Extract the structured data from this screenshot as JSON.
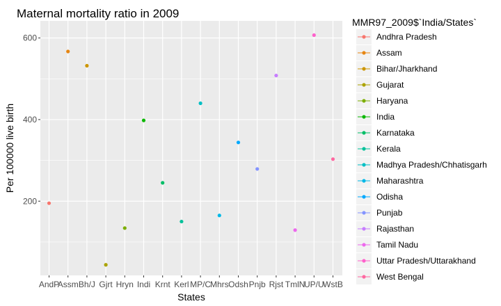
{
  "chart_data": {
    "type": "scatter",
    "title": "Maternal mortality ratio in 2009",
    "xlabel": "States",
    "ylabel": "Per 100000 live birth",
    "ylim": [
      18,
      642
    ],
    "yticks": [
      200,
      400,
      600
    ],
    "grid": true,
    "legend": {
      "title": "MMR97_2009$`India/States`",
      "placement": "right"
    },
    "categories": [
      "AndP",
      "Assm",
      "Bh/J",
      "Gjrt",
      "Hryn",
      "Indi",
      "Krnt",
      "Kerl",
      "MP/C",
      "Mhrs",
      "Odsh",
      "Pnjb",
      "Rjst",
      "TmlN",
      "UP/U",
      "WstB"
    ],
    "series": [
      {
        "name": "Andhra Pradesh",
        "x": "AndP",
        "y": 195,
        "color": "#F8766D"
      },
      {
        "name": "Assam",
        "x": "Assm",
        "y": 567,
        "color": "#E68613"
      },
      {
        "name": "Bihar/Jharkhand",
        "x": "Bh/J",
        "y": 532,
        "color": "#CD9600"
      },
      {
        "name": "Gujarat",
        "x": "Gjrt",
        "y": 44,
        "color": "#ABA300"
      },
      {
        "name": "Haryana",
        "x": "Hryn",
        "y": 134,
        "color": "#7CAE00"
      },
      {
        "name": "India",
        "x": "Indi",
        "y": 398,
        "color": "#0CB702"
      },
      {
        "name": "Karnataka",
        "x": "Krnt",
        "y": 245,
        "color": "#00BE67"
      },
      {
        "name": "Kerala",
        "x": "Kerl",
        "y": 150,
        "color": "#00C19A"
      },
      {
        "name": "Madhya Pradesh/Chhatisgarh",
        "x": "MP/C",
        "y": 440,
        "color": "#00BFC4"
      },
      {
        "name": "Maharashtra",
        "x": "Mhrs",
        "y": 165,
        "color": "#00B8E7"
      },
      {
        "name": "Odisha",
        "x": "Odsh",
        "y": 344,
        "color": "#00A9FF"
      },
      {
        "name": "Punjab",
        "x": "Pnjb",
        "y": 279,
        "color": "#8494FF"
      },
      {
        "name": "Rajasthan",
        "x": "Rjst",
        "y": 508,
        "color": "#C77CFF"
      },
      {
        "name": "Tamil Nadu",
        "x": "TmlN",
        "y": 129,
        "color": "#ED68ED"
      },
      {
        "name": "Uttar Pradesh/Uttarakhand",
        "x": "UP/U",
        "y": 607,
        "color": "#FF61CC"
      },
      {
        "name": "West Bengal",
        "x": "WstB",
        "y": 303,
        "color": "#FF68A1"
      }
    ]
  }
}
